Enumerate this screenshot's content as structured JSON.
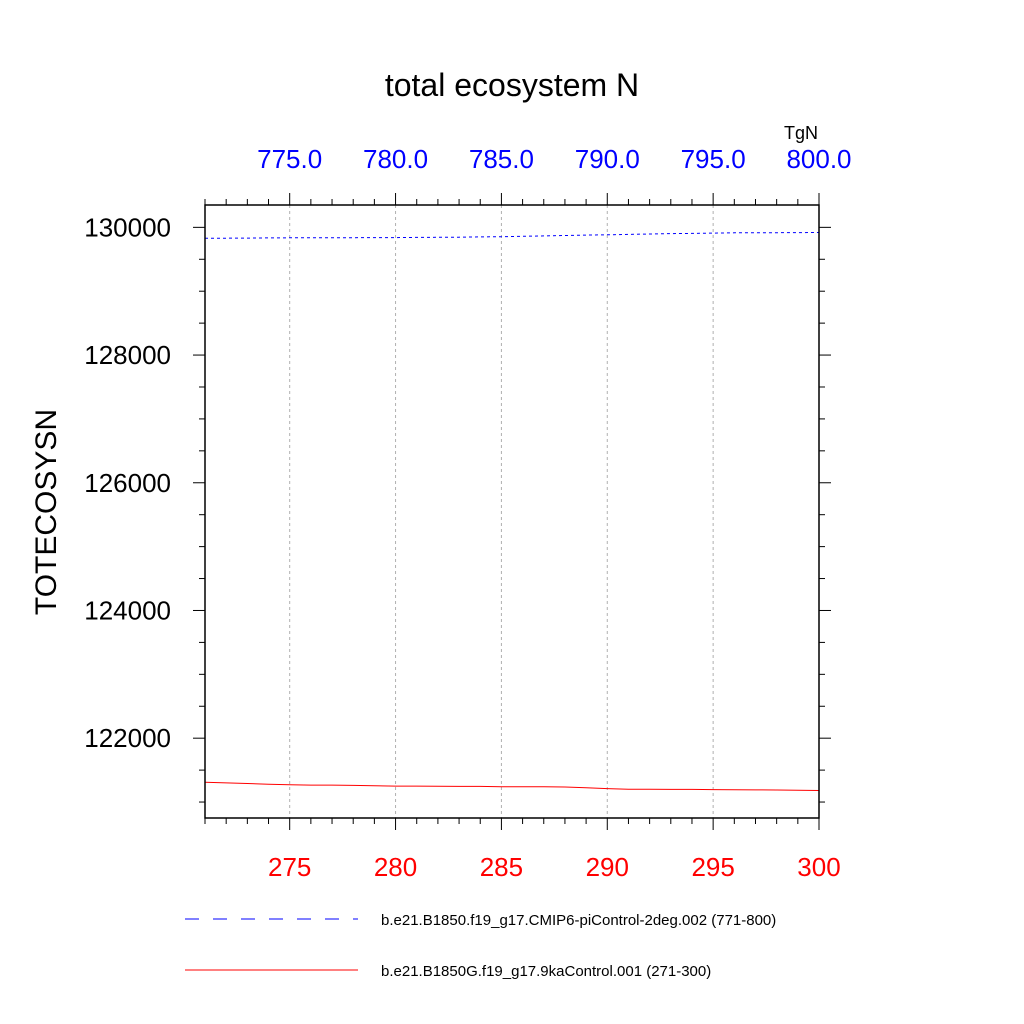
{
  "chart_data": {
    "type": "line",
    "title": "total ecosystem N",
    "units": "TgN",
    "ylabel": "TOTECOSYSN",
    "ylim": [
      120750,
      130350
    ],
    "yticks": [
      {
        "value": 122000,
        "label": "122000"
      },
      {
        "value": 124000,
        "label": "124000"
      },
      {
        "value": 126000,
        "label": "126000"
      },
      {
        "value": 128000,
        "label": "128000"
      },
      {
        "value": 130000,
        "label": "130000"
      }
    ],
    "y_minor_step": 500,
    "x_bottom": {
      "range": [
        271,
        300
      ],
      "ticks": [
        {
          "value": 275,
          "label": "275"
        },
        {
          "value": 280,
          "label": "280"
        },
        {
          "value": 285,
          "label": "285"
        },
        {
          "value": 290,
          "label": "290"
        },
        {
          "value": 295,
          "label": "295"
        },
        {
          "value": 300,
          "label": "300"
        }
      ],
      "minor_step": 1,
      "color": "#ff0000"
    },
    "x_top": {
      "range": [
        771,
        800
      ],
      "ticks": [
        {
          "value": 775,
          "label": "775.0"
        },
        {
          "value": 780,
          "label": "780.0"
        },
        {
          "value": 785,
          "label": "785.0"
        },
        {
          "value": 790,
          "label": "790.0"
        },
        {
          "value": 795,
          "label": "795.0"
        },
        {
          "value": 800,
          "label": "800.0"
        }
      ],
      "minor_step": 1,
      "color": "#0000ff"
    },
    "series": [
      {
        "name": "b.e21.B1850.f19_g17.CMIP6-piControl-2deg.002 (771-800)",
        "axis": "top",
        "color": "#0000ff",
        "dash": "dashed",
        "x": [
          771,
          772,
          773,
          774,
          775,
          776,
          777,
          778,
          779,
          780,
          781,
          782,
          783,
          784,
          785,
          786,
          787,
          788,
          789,
          790,
          791,
          792,
          793,
          794,
          795,
          796,
          797,
          798,
          799,
          800
        ],
        "values": [
          129830,
          129830,
          129832,
          129834,
          129836,
          129836,
          129838,
          129838,
          129840,
          129840,
          129842,
          129844,
          129846,
          129850,
          129854,
          129860,
          129866,
          129872,
          129878,
          129884,
          129890,
          129896,
          129902,
          129906,
          129910,
          129914,
          129916,
          129916,
          129918,
          129920
        ]
      },
      {
        "name": "b.e21.B1850G.f19_g17.9kaControl.001 (271-300)",
        "axis": "bottom",
        "color": "#ff0000",
        "dash": "solid",
        "x": [
          271,
          272,
          273,
          274,
          275,
          276,
          277,
          278,
          279,
          280,
          281,
          282,
          283,
          284,
          285,
          286,
          287,
          288,
          289,
          290,
          291,
          292,
          293,
          294,
          295,
          296,
          297,
          298,
          299,
          300
        ],
        "values": [
          121310,
          121300,
          121290,
          121280,
          121270,
          121265,
          121265,
          121260,
          121255,
          121250,
          121250,
          121248,
          121245,
          121245,
          121240,
          121240,
          121240,
          121235,
          121225,
          121210,
          121200,
          121200,
          121198,
          121198,
          121195,
          121192,
          121190,
          121188,
          121185,
          121180
        ]
      }
    ]
  }
}
